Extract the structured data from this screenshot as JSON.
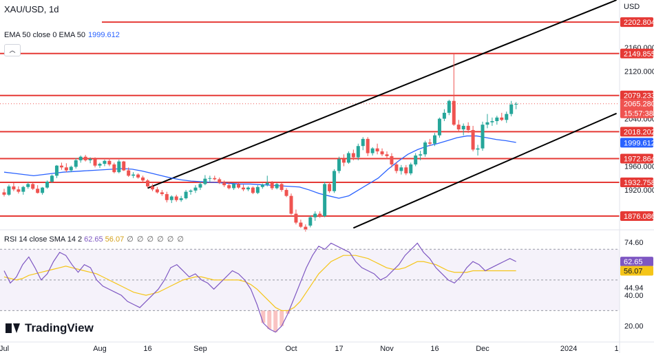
{
  "header": {
    "symbol": "XAU/USD, 1d",
    "currency": "USD",
    "ema_legend": "EMA 50 close 0 EMA 50",
    "ema_value": "1999.612",
    "rsi_legend": "RSI 14 close SMA 14 2",
    "rsi_value": "62.65",
    "rsi_sma_value": "56.07",
    "rsi_extra": "∅ ∅ ∅ ∅ ∅ ∅"
  },
  "branding": {
    "logo_text": "TradingView"
  },
  "colors": {
    "up": "#26a69a",
    "down": "#ef5350",
    "level": "#e53935",
    "ema": "#2962ff",
    "rsi": "#7e57c2",
    "rsi_sma": "#f5c518",
    "trend": "#000000"
  },
  "chart_data": {
    "type": "candlestick",
    "title": "XAU/USD, 1d",
    "price_ticks": [
      "2160.000",
      "2120.000",
      "2040.000",
      "1960.000",
      "1920.000"
    ],
    "x_ticks": [
      "Jul",
      "Aug",
      "16",
      "Sep",
      "Oct",
      "17",
      "Nov",
      "16",
      "Dec",
      "2024",
      "1"
    ],
    "price_range": [
      1854,
      2240
    ],
    "levels": [
      {
        "value": 2202.804,
        "label": "2202.804"
      },
      {
        "value": 2149.855,
        "label": "2149.855"
      },
      {
        "value": 2079.233,
        "label": "2079.233"
      },
      {
        "value": 2018.202,
        "label": "2018.202"
      },
      {
        "value": 1972.864,
        "label": "1972.864"
      },
      {
        "value": 1932.758,
        "label": "1932.758"
      },
      {
        "value": 1876.086,
        "label": "1876.086"
      }
    ],
    "last_price": {
      "value": 2065.28,
      "label": "2065.280",
      "countdown": "15:57:38"
    },
    "ema_last": {
      "value": 1999.612,
      "label": "1999.612"
    },
    "candles": [
      [
        1916,
        1922,
        1909,
        1912
      ],
      [
        1912,
        1929,
        1910,
        1926
      ],
      [
        1926,
        1932,
        1918,
        1921
      ],
      [
        1921,
        1926,
        1914,
        1917
      ],
      [
        1917,
        1927,
        1912,
        1925
      ],
      [
        1925,
        1933,
        1922,
        1930
      ],
      [
        1930,
        1932,
        1920,
        1922
      ],
      [
        1922,
        1928,
        1914,
        1915
      ],
      [
        1915,
        1925,
        1912,
        1924
      ],
      [
        1924,
        1936,
        1922,
        1934
      ],
      [
        1934,
        1946,
        1932,
        1944
      ],
      [
        1944,
        1962,
        1940,
        1961
      ],
      [
        1961,
        1966,
        1954,
        1958
      ],
      [
        1958,
        1965,
        1950,
        1953
      ],
      [
        1953,
        1961,
        1950,
        1959
      ],
      [
        1959,
        1974,
        1956,
        1970
      ],
      [
        1970,
        1978,
        1966,
        1976
      ],
      [
        1976,
        1979,
        1968,
        1970
      ],
      [
        1970,
        1975,
        1965,
        1972
      ],
      [
        1972,
        1975,
        1958,
        1961
      ],
      [
        1961,
        1966,
        1957,
        1964
      ],
      [
        1964,
        1971,
        1960,
        1969
      ],
      [
        1969,
        1974,
        1960,
        1963
      ],
      [
        1963,
        1966,
        1948,
        1950
      ],
      [
        1950,
        1971,
        1948,
        1968
      ],
      [
        1968,
        1969,
        1952,
        1953
      ],
      [
        1953,
        1958,
        1942,
        1944
      ],
      [
        1944,
        1950,
        1940,
        1946
      ],
      [
        1946,
        1948,
        1939,
        1941
      ],
      [
        1941,
        1944,
        1933,
        1936
      ],
      [
        1936,
        1938,
        1924,
        1926
      ],
      [
        1926,
        1930,
        1918,
        1921
      ],
      [
        1921,
        1925,
        1914,
        1916
      ],
      [
        1916,
        1920,
        1910,
        1913
      ],
      [
        1913,
        1917,
        1899,
        1903
      ],
      [
        1903,
        1911,
        1898,
        1909
      ],
      [
        1909,
        1912,
        1900,
        1903
      ],
      [
        1903,
        1910,
        1900,
        1906
      ],
      [
        1906,
        1920,
        1904,
        1917
      ],
      [
        1917,
        1921,
        1912,
        1919
      ],
      [
        1919,
        1928,
        1915,
        1924
      ],
      [
        1924,
        1934,
        1920,
        1930
      ],
      [
        1930,
        1945,
        1928,
        1939
      ],
      [
        1939,
        1944,
        1933,
        1940
      ],
      [
        1940,
        1944,
        1936,
        1938
      ],
      [
        1938,
        1941,
        1930,
        1932
      ],
      [
        1932,
        1936,
        1925,
        1928
      ],
      [
        1928,
        1933,
        1921,
        1923
      ],
      [
        1923,
        1932,
        1920,
        1930
      ],
      [
        1930,
        1932,
        1922,
        1924
      ],
      [
        1924,
        1929,
        1918,
        1921
      ],
      [
        1921,
        1926,
        1918,
        1924
      ],
      [
        1924,
        1926,
        1913,
        1915
      ],
      [
        1915,
        1928,
        1913,
        1925
      ],
      [
        1925,
        1931,
        1922,
        1929
      ],
      [
        1929,
        1944,
        1926,
        1932
      ],
      [
        1932,
        1935,
        1920,
        1923
      ],
      [
        1923,
        1932,
        1921,
        1930
      ],
      [
        1930,
        1932,
        1917,
        1920
      ],
      [
        1920,
        1923,
        1908,
        1910
      ],
      [
        1910,
        1914,
        1878,
        1880
      ],
      [
        1880,
        1887,
        1862,
        1865
      ],
      [
        1865,
        1870,
        1856,
        1858
      ],
      [
        1858,
        1862,
        1850,
        1853
      ],
      [
        1860,
        1877,
        1857,
        1874
      ],
      [
        1874,
        1884,
        1868,
        1880
      ],
      [
        1880,
        1884,
        1873,
        1876
      ],
      [
        1876,
        1934,
        1874,
        1930
      ],
      [
        1930,
        1934,
        1915,
        1918
      ],
      [
        1918,
        1955,
        1915,
        1952
      ],
      [
        1952,
        1976,
        1948,
        1972
      ],
      [
        1972,
        1980,
        1960,
        1966
      ],
      [
        1966,
        1985,
        1964,
        1982
      ],
      [
        1982,
        1988,
        1970,
        1975
      ],
      [
        1975,
        1998,
        1970,
        1994
      ],
      [
        1994,
        2009,
        1987,
        2006
      ],
      [
        2006,
        2009,
        1977,
        1982
      ],
      [
        1982,
        1992,
        1978,
        1990
      ],
      [
        1990,
        1998,
        1980,
        1985
      ],
      [
        1985,
        1990,
        1977,
        1980
      ],
      [
        1980,
        1985,
        1972,
        1977
      ],
      [
        1977,
        1982,
        1958,
        1963
      ],
      [
        1963,
        1967,
        1948,
        1952
      ],
      [
        1952,
        1962,
        1946,
        1958
      ],
      [
        1958,
        1962,
        1945,
        1948
      ],
      [
        1948,
        1966,
        1945,
        1963
      ],
      [
        1963,
        1982,
        1960,
        1978
      ],
      [
        1978,
        1986,
        1970,
        1980
      ],
      [
        1980,
        2003,
        1976,
        2000
      ],
      [
        2000,
        2006,
        1994,
        1998
      ],
      [
        1998,
        2016,
        1994,
        2012
      ],
      [
        2012,
        2042,
        2008,
        2040
      ],
      [
        2040,
        2056,
        2036,
        2050
      ],
      [
        2050,
        2072,
        2046,
        2070
      ],
      [
        2070,
        2150,
        2028,
        2030
      ],
      [
        2030,
        2038,
        2018,
        2022
      ],
      [
        2022,
        2032,
        2012,
        2028
      ],
      [
        2028,
        2034,
        2016,
        2021
      ],
      [
        2021,
        2028,
        1985,
        1988
      ],
      [
        1988,
        1996,
        1978,
        1990
      ],
      [
        1990,
        2035,
        1986,
        2030
      ],
      [
        2030,
        2048,
        2024,
        2034
      ],
      [
        2034,
        2042,
        2028,
        2036
      ],
      [
        2036,
        2045,
        2030,
        2042
      ],
      [
        2042,
        2050,
        2036,
        2038
      ],
      [
        2038,
        2052,
        2033,
        2048
      ],
      [
        2048,
        2070,
        2044,
        2064
      ],
      [
        2064,
        2068,
        2056,
        2065
      ]
    ],
    "ema": [
      1950,
      1948,
      1946,
      1944,
      1946,
      1948,
      1950,
      1951,
      1952,
      1953,
      1954,
      1955,
      1956,
      1955,
      1952,
      1948,
      1944,
      1940,
      1937,
      1935,
      1934,
      1933,
      1932,
      1931,
      1930,
      1930,
      1929,
      1928,
      1927,
      1926,
      1925,
      1920,
      1914,
      1910,
      1906,
      1910,
      1920,
      1930,
      1940,
      1955,
      1968,
      1980,
      1988,
      1994,
      1998,
      2003,
      2008,
      2011,
      2011,
      2008,
      2005,
      2003,
      2000
    ],
    "rsi": {
      "ticks": [
        "74.60",
        "44.94",
        "40.00",
        "20.00"
      ],
      "range": [
        10,
        80
      ],
      "series_rsi": [
        56,
        48,
        52,
        60,
        65,
        58,
        50,
        54,
        62,
        68,
        66,
        60,
        55,
        60,
        58,
        50,
        46,
        44,
        42,
        40,
        36,
        34,
        32,
        36,
        40,
        44,
        50,
        58,
        60,
        56,
        52,
        54,
        50,
        48,
        44,
        48,
        52,
        56,
        54,
        50,
        44,
        34,
        22,
        18,
        16,
        20,
        28,
        38,
        48,
        58,
        66,
        72,
        70,
        74,
        72,
        70,
        68,
        62,
        58,
        56,
        54,
        50,
        52,
        56,
        60,
        66,
        70,
        74,
        68,
        64,
        58,
        54,
        50,
        48,
        52,
        58,
        62,
        60,
        56,
        58,
        60,
        62,
        64,
        62
      ],
      "series_sma": [
        52,
        51,
        50,
        51,
        53,
        54,
        55,
        56,
        57,
        58,
        59,
        58,
        57,
        56,
        55,
        54,
        52,
        50,
        48,
        46,
        44,
        42,
        41,
        40,
        41,
        42,
        44,
        46,
        48,
        50,
        51,
        52,
        52,
        51,
        50,
        50,
        50,
        50,
        50,
        49,
        47,
        44,
        40,
        36,
        32,
        30,
        30,
        32,
        36,
        42,
        48,
        54,
        58,
        62,
        64,
        66,
        66,
        66,
        65,
        64,
        62,
        60,
        58,
        57,
        57,
        58,
        60,
        62,
        62,
        61,
        60,
        58,
        56,
        55,
        55,
        55,
        56,
        56,
        56,
        56,
        56,
        56,
        56,
        56
      ]
    }
  }
}
